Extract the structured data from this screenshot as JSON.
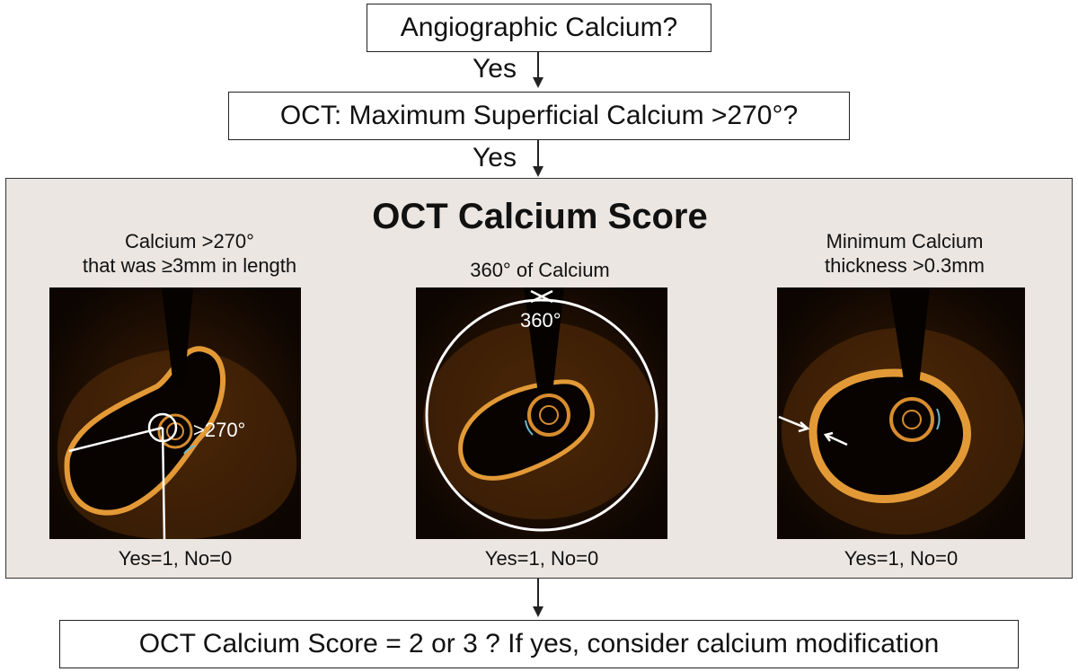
{
  "flow": {
    "step1": "Angiographic Calcium?",
    "yes1": "Yes",
    "step2": "OCT: Maximum Superficial Calcium >270°?",
    "yes2": "Yes",
    "final": "OCT Calcium Score = 2 or 3 ? If yes, consider calcium modification"
  },
  "score_panel": {
    "title": "OCT Calcium Score",
    "criteria": [
      {
        "title_line1": "Calcium >270°",
        "title_line2": "that was ≥3mm in length",
        "image_label": ">270°",
        "scoring": "Yes=1, No=0"
      },
      {
        "title_line1": "360° of Calcium",
        "image_label": "360°",
        "scoring": "Yes=1, No=0"
      },
      {
        "title_line1": "Minimum Calcium",
        "title_line2": "thickness >0.3mm",
        "scoring": "Yes=1, No=0"
      }
    ]
  },
  "colors": {
    "panel_bg": "#ebe6e2",
    "oct_tissue": "#c27a22",
    "oct_background": "#0c0501",
    "annotation": "#ffffff"
  }
}
